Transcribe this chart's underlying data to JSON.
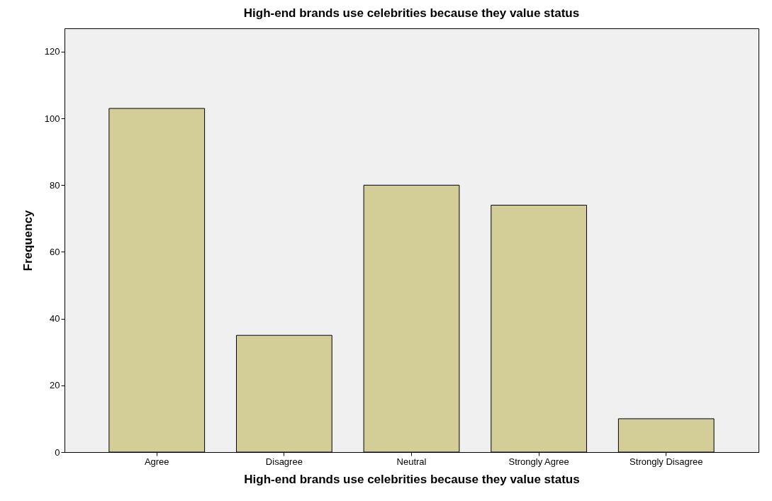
{
  "chart_data": {
    "type": "bar",
    "title": "High-end brands use celebrities because they value status",
    "xlabel": "High-end brands use celebrities because they value status",
    "ylabel": "Frequency",
    "categories": [
      "Agree",
      "Disagree",
      "Neutral",
      "Strongly Agree",
      "Strongly Disagree"
    ],
    "values": [
      103,
      35,
      80,
      74,
      10
    ],
    "color": "#d3ce97",
    "ylim": [
      0,
      127
    ],
    "yticks": [
      0,
      20,
      40,
      60,
      80,
      100,
      120
    ],
    "grid": false
  }
}
